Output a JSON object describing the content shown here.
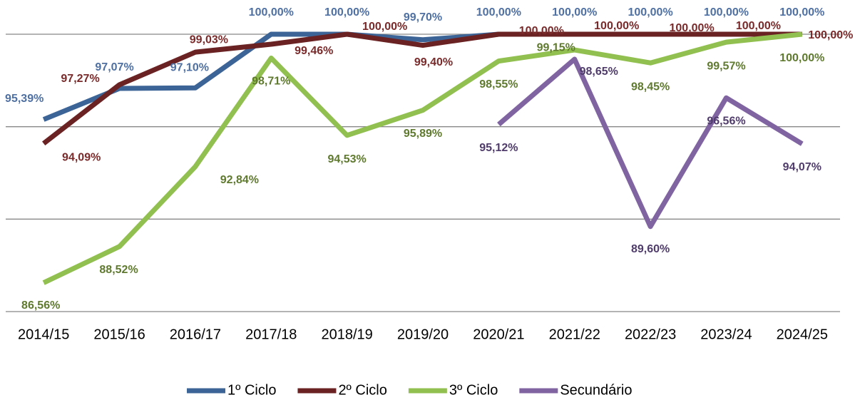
{
  "chart_data": {
    "type": "line",
    "categories": [
      "2014/15",
      "2015/16",
      "2016/17",
      "2017/18",
      "2018/19",
      "2019/20",
      "2020/21",
      "2021/22",
      "2022/23",
      "2023/24",
      "2024/25"
    ],
    "ylim": [
      85,
      100
    ],
    "yticks": [
      85,
      90,
      95,
      100
    ],
    "grid": true,
    "legend": "bottom",
    "series": [
      {
        "name": "1º Ciclo",
        "color": "#3d6496",
        "label_color": "#4f70a2",
        "values": [
          95.39,
          97.07,
          97.1,
          100,
          100,
          99.7,
          100,
          100,
          100,
          100,
          100
        ],
        "value_labels": [
          "95,39%",
          "97,07%",
          "97,10%",
          "100,00%",
          "100,00%",
          "99,70%",
          "100,00%",
          "100,00%",
          "100,00%",
          "100,00%",
          "100,00%"
        ]
      },
      {
        "name": "2º Ciclo",
        "color": "#6a2223",
        "label_color": "#7a2a2a",
        "values": [
          94.09,
          97.27,
          99.03,
          99.46,
          100,
          99.4,
          100,
          100,
          100,
          100,
          100
        ],
        "value_labels": [
          "94,09%",
          "97,27%",
          "99,03%",
          "99,46%",
          "100,00%",
          "99,40%",
          "100,00%",
          "100,00%",
          "100,00%",
          "100,00%",
          "100,00%"
        ]
      },
      {
        "name": "3º Ciclo",
        "color": "#92c050",
        "label_color": "#5f7a2f",
        "values": [
          86.56,
          88.52,
          92.84,
          98.71,
          94.53,
          95.89,
          98.55,
          99.15,
          98.45,
          99.57,
          100
        ],
        "value_labels": [
          "86,56%",
          "88,52%",
          "92,84%",
          "98,71%",
          "94,53%",
          "95,89%",
          "98,55%",
          "99,15%",
          "98,45%",
          "99,57%",
          "100,00%"
        ]
      },
      {
        "name": "Secundário",
        "color": "#8064a2",
        "label_color": "#4f3c6b",
        "values": [
          null,
          null,
          null,
          null,
          null,
          null,
          95.12,
          98.65,
          89.6,
          96.56,
          94.07
        ],
        "value_labels": [
          null,
          null,
          null,
          null,
          null,
          null,
          "95,12%",
          "98,65%",
          "89,60%",
          "96,56%",
          "94,07%"
        ]
      }
    ]
  }
}
